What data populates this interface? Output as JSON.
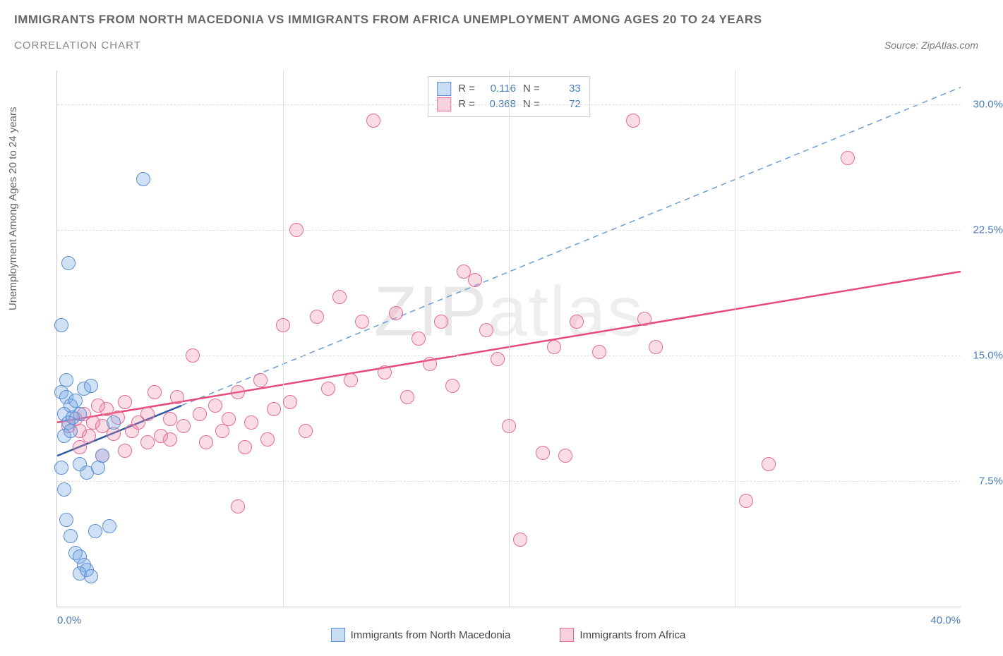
{
  "header": {
    "title": "IMMIGRANTS FROM NORTH MACEDONIA VS IMMIGRANTS FROM AFRICA UNEMPLOYMENT AMONG AGES 20 TO 24 YEARS",
    "subtitle": "CORRELATION CHART",
    "source": "Source: ZipAtlas.com"
  },
  "yaxis": {
    "label": "Unemployment Among Ages 20 to 24 years",
    "min": 0,
    "max": 32,
    "ticks": [
      {
        "value": 7.5,
        "label": "7.5%"
      },
      {
        "value": 15.0,
        "label": "15.0%"
      },
      {
        "value": 22.5,
        "label": "22.5%"
      },
      {
        "value": 30.0,
        "label": "30.0%"
      }
    ],
    "tick_color": "#4a7ebb",
    "grid_color": "#e0e0e0"
  },
  "xaxis": {
    "min": 0,
    "max": 40,
    "ticks_grid": [
      10,
      20,
      30
    ],
    "label_left": "0.0%",
    "label_right": "40.0%",
    "tick_color": "#4a7ebb"
  },
  "series": {
    "blue": {
      "name": "Immigrants from North Macedonia",
      "R": "0.116",
      "N": "33",
      "color_fill": "rgba(120,170,230,0.35)",
      "color_stroke": "#5b8fd6",
      "trend": {
        "x1": 0,
        "y1": 9.0,
        "x2": 5.5,
        "y2": 12.0,
        "dash_x2": 40,
        "dash_y2": 31.0,
        "color": "#2c5aa0"
      },
      "points": [
        {
          "x": 0.2,
          "y": 16.8
        },
        {
          "x": 0.5,
          "y": 20.5
        },
        {
          "x": 0.2,
          "y": 8.3
        },
        {
          "x": 0.3,
          "y": 7.0
        },
        {
          "x": 0.4,
          "y": 5.2
        },
        {
          "x": 0.6,
          "y": 4.2
        },
        {
          "x": 0.8,
          "y": 3.2
        },
        {
          "x": 1.0,
          "y": 3.0
        },
        {
          "x": 1.2,
          "y": 2.5
        },
        {
          "x": 1.0,
          "y": 2.0
        },
        {
          "x": 1.3,
          "y": 2.2
        },
        {
          "x": 1.5,
          "y": 1.8
        },
        {
          "x": 1.7,
          "y": 4.5
        },
        {
          "x": 2.3,
          "y": 4.8
        },
        {
          "x": 0.2,
          "y": 12.8
        },
        {
          "x": 0.4,
          "y": 12.5
        },
        {
          "x": 0.6,
          "y": 12.0
        },
        {
          "x": 0.8,
          "y": 12.3
        },
        {
          "x": 0.3,
          "y": 11.5
        },
        {
          "x": 0.5,
          "y": 11.0
        },
        {
          "x": 0.7,
          "y": 11.3
        },
        {
          "x": 1.0,
          "y": 11.5
        },
        {
          "x": 1.2,
          "y": 13.0
        },
        {
          "x": 0.4,
          "y": 13.5
        },
        {
          "x": 1.5,
          "y": 13.2
        },
        {
          "x": 1.0,
          "y": 8.5
        },
        {
          "x": 1.3,
          "y": 8.0
        },
        {
          "x": 1.8,
          "y": 8.3
        },
        {
          "x": 0.3,
          "y": 10.2
        },
        {
          "x": 0.6,
          "y": 10.5
        },
        {
          "x": 2.0,
          "y": 9.0
        },
        {
          "x": 2.5,
          "y": 11.0
        },
        {
          "x": 3.8,
          "y": 25.5
        }
      ]
    },
    "pink": {
      "name": "Immigrants from Africa",
      "R": "0.368",
      "N": "72",
      "color_fill": "rgba(240,140,170,0.30)",
      "color_stroke": "#e86a93",
      "trend": {
        "x1": 0,
        "y1": 11.0,
        "x2": 40,
        "y2": 20.0,
        "color": "#e64a7a"
      },
      "points": [
        {
          "x": 0.5,
          "y": 10.8
        },
        {
          "x": 0.8,
          "y": 11.2
        },
        {
          "x": 1.0,
          "y": 10.5
        },
        {
          "x": 1.2,
          "y": 11.5
        },
        {
          "x": 1.4,
          "y": 10.2
        },
        {
          "x": 1.6,
          "y": 11.0
        },
        {
          "x": 1.8,
          "y": 12.0
        },
        {
          "x": 2.0,
          "y": 10.8
        },
        {
          "x": 2.2,
          "y": 11.8
        },
        {
          "x": 2.5,
          "y": 10.3
        },
        {
          "x": 2.7,
          "y": 11.3
        },
        {
          "x": 3.0,
          "y": 12.2
        },
        {
          "x": 3.3,
          "y": 10.5
        },
        {
          "x": 3.6,
          "y": 11.0
        },
        {
          "x": 4.0,
          "y": 11.5
        },
        {
          "x": 4.3,
          "y": 12.8
        },
        {
          "x": 4.6,
          "y": 10.2
        },
        {
          "x": 5.0,
          "y": 11.2
        },
        {
          "x": 5.3,
          "y": 12.5
        },
        {
          "x": 5.6,
          "y": 10.8
        },
        {
          "x": 6.0,
          "y": 15.0
        },
        {
          "x": 6.3,
          "y": 11.5
        },
        {
          "x": 6.6,
          "y": 9.8
        },
        {
          "x": 7.0,
          "y": 12.0
        },
        {
          "x": 7.3,
          "y": 10.5
        },
        {
          "x": 7.6,
          "y": 11.2
        },
        {
          "x": 8.0,
          "y": 12.8
        },
        {
          "x": 8.3,
          "y": 9.5
        },
        {
          "x": 8.6,
          "y": 11.0
        },
        {
          "x": 9.0,
          "y": 13.5
        },
        {
          "x": 9.3,
          "y": 10.0
        },
        {
          "x": 9.6,
          "y": 11.8
        },
        {
          "x": 10.0,
          "y": 16.8
        },
        {
          "x": 10.3,
          "y": 12.2
        },
        {
          "x": 10.6,
          "y": 22.5
        },
        {
          "x": 11.0,
          "y": 10.5
        },
        {
          "x": 11.5,
          "y": 17.3
        },
        {
          "x": 12.0,
          "y": 13.0
        },
        {
          "x": 12.5,
          "y": 18.5
        },
        {
          "x": 13.0,
          "y": 13.5
        },
        {
          "x": 13.5,
          "y": 17.0
        },
        {
          "x": 14.0,
          "y": 29.0
        },
        {
          "x": 14.5,
          "y": 14.0
        },
        {
          "x": 15.0,
          "y": 17.5
        },
        {
          "x": 15.5,
          "y": 12.5
        },
        {
          "x": 16.0,
          "y": 16.0
        },
        {
          "x": 16.5,
          "y": 14.5
        },
        {
          "x": 17.0,
          "y": 17.0
        },
        {
          "x": 17.5,
          "y": 13.2
        },
        {
          "x": 18.0,
          "y": 20.0
        },
        {
          "x": 18.5,
          "y": 19.5
        },
        {
          "x": 19.0,
          "y": 16.5
        },
        {
          "x": 19.5,
          "y": 14.8
        },
        {
          "x": 20.0,
          "y": 10.8
        },
        {
          "x": 20.5,
          "y": 4.0
        },
        {
          "x": 21.5,
          "y": 9.2
        },
        {
          "x": 22.0,
          "y": 15.5
        },
        {
          "x": 22.5,
          "y": 9.0
        },
        {
          "x": 23.0,
          "y": 17.0
        },
        {
          "x": 24.0,
          "y": 15.2
        },
        {
          "x": 25.5,
          "y": 29.0
        },
        {
          "x": 26.0,
          "y": 17.2
        },
        {
          "x": 26.5,
          "y": 15.5
        },
        {
          "x": 30.5,
          "y": 6.3
        },
        {
          "x": 31.5,
          "y": 8.5
        },
        {
          "x": 35.0,
          "y": 26.8
        },
        {
          "x": 8.0,
          "y": 6.0
        },
        {
          "x": 1.0,
          "y": 9.5
        },
        {
          "x": 2.0,
          "y": 9.0
        },
        {
          "x": 3.0,
          "y": 9.3
        },
        {
          "x": 4.0,
          "y": 9.8
        },
        {
          "x": 5.0,
          "y": 10.0
        }
      ]
    }
  },
  "legend_top": {
    "r_label": "R =",
    "n_label": "N ="
  },
  "watermark": {
    "strong": "ZIP",
    "thin": "atlas"
  },
  "colors": {
    "title_color": "#666666",
    "axis_line": "#cccccc",
    "background": "#ffffff"
  }
}
